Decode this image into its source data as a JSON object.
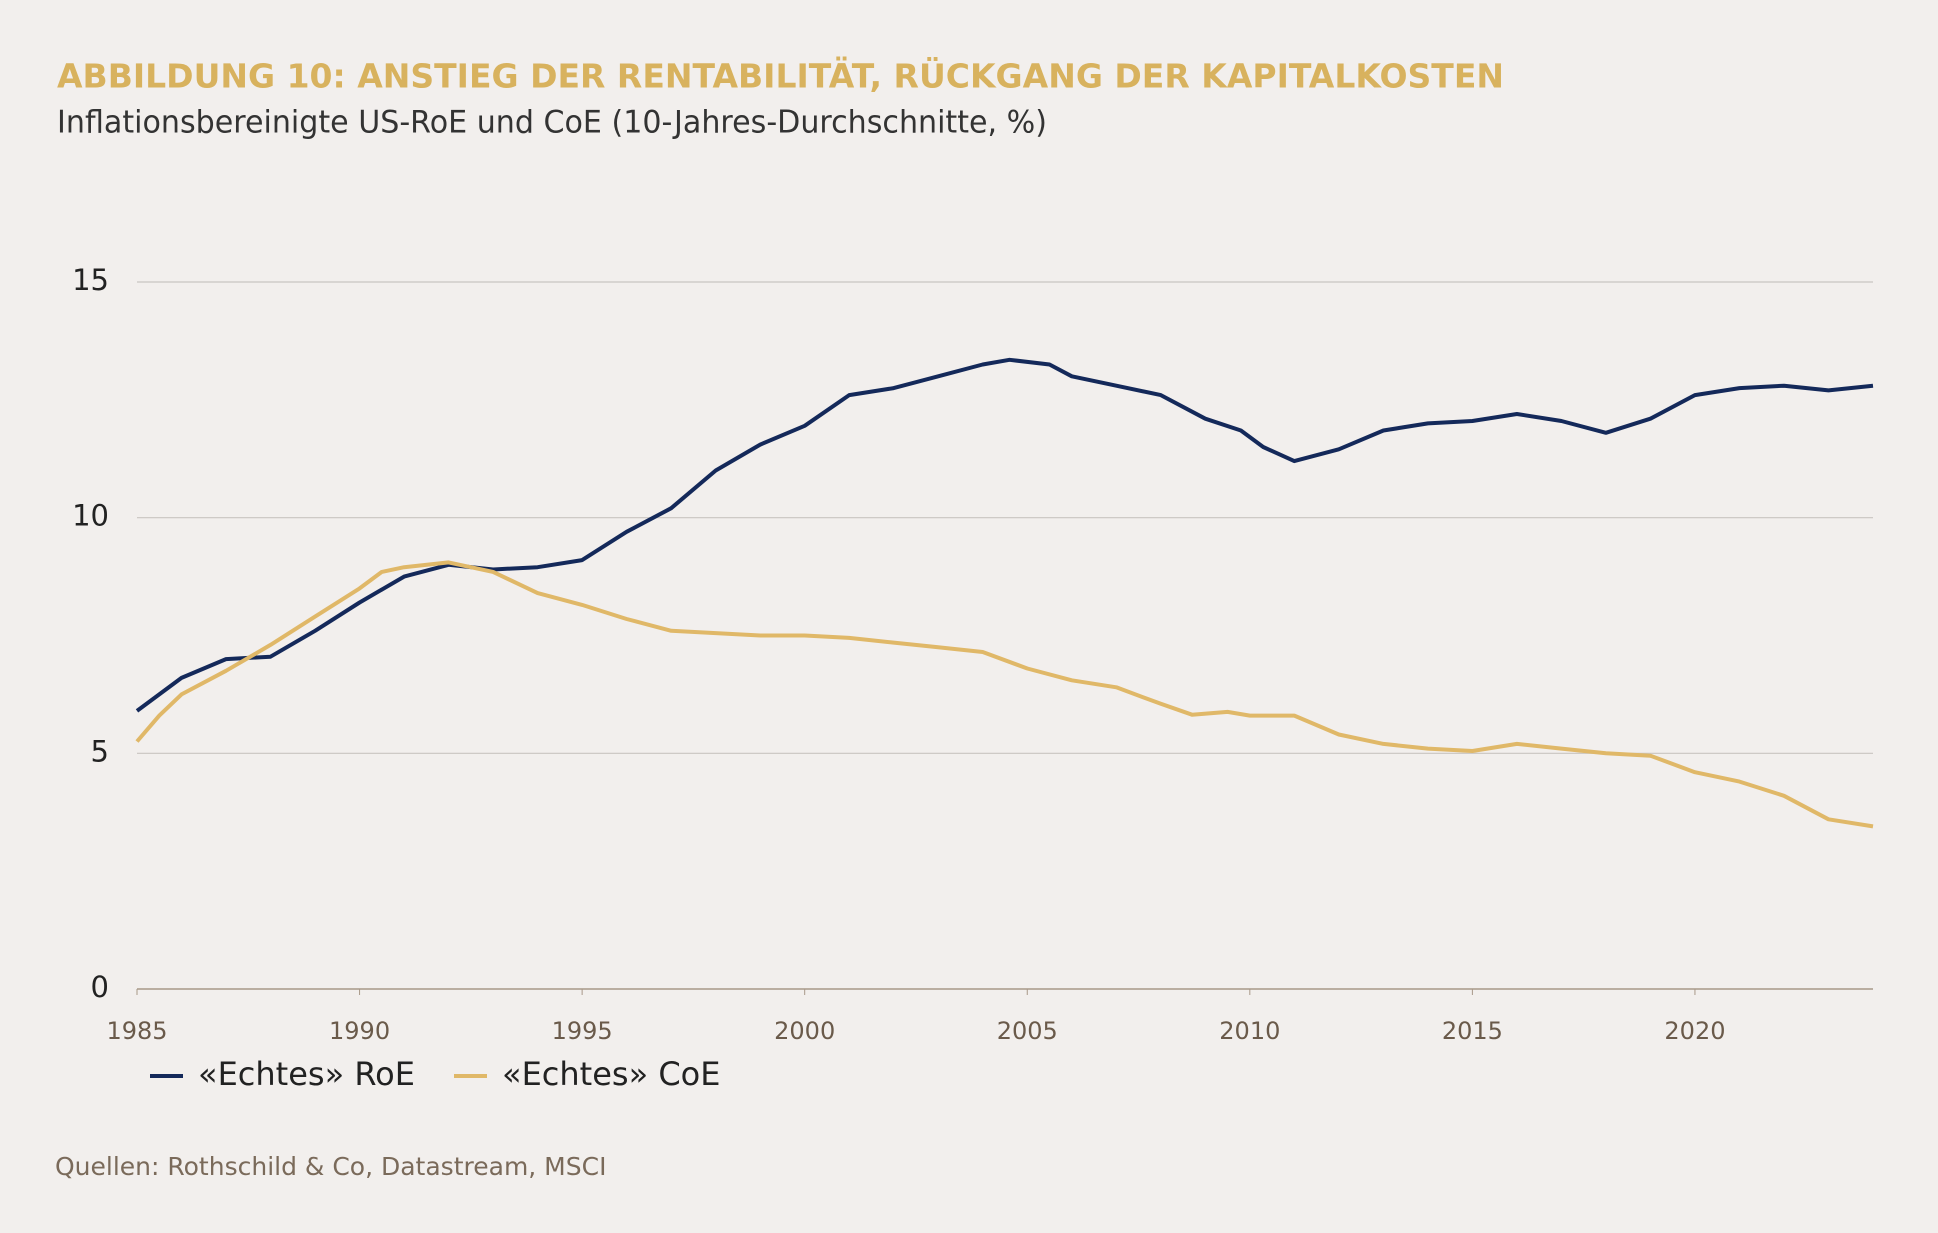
{
  "chart_data": {
    "type": "line",
    "title": "ABBILDUNG 10: ANSTIEG DER RENTABILITÄT, RÜCKGANG DER KAPITALKOSTEN",
    "subtitle": "Inflationsbereinigte US-RoE und CoE (10-Jahres-Durchschnitte, %)",
    "source": "Quellen: Rothschild & Co, Datastream, MSCI",
    "xlim": [
      1985,
      2024
    ],
    "xticks": [
      1985,
      1990,
      1995,
      2000,
      2005,
      2010,
      2015,
      2020
    ],
    "ylim": [
      0,
      15
    ],
    "yticks": [
      0,
      5,
      10,
      15
    ],
    "grid": true,
    "series": [
      {
        "name": "«Echtes» RoE",
        "color": "#14295a",
        "x": [
          1985,
          1986,
          1987,
          1988,
          1989,
          1990,
          1991,
          1992,
          1993,
          1994,
          1995,
          1996,
          1997,
          1998,
          1999,
          2000,
          2001,
          2002,
          2003,
          2004,
          2004.6,
          2005.5,
          2006,
          2007,
          2008,
          2009,
          2009.8,
          2010.3,
          2011,
          2012,
          2013,
          2014,
          2015,
          2016,
          2017,
          2018,
          2019,
          2020,
          2021,
          2022,
          2023,
          2024
        ],
        "values": [
          5.9,
          6.6,
          7.0,
          7.05,
          7.6,
          8.2,
          8.75,
          9.0,
          8.9,
          8.95,
          9.1,
          9.7,
          10.2,
          11.0,
          11.55,
          11.95,
          12.6,
          12.75,
          13.0,
          13.25,
          13.35,
          13.25,
          13.0,
          12.8,
          12.6,
          12.1,
          11.85,
          11.5,
          11.2,
          11.45,
          11.85,
          12.0,
          12.05,
          12.2,
          12.05,
          11.8,
          12.1,
          12.6,
          12.75,
          12.8,
          12.7,
          12.8
        ]
      },
      {
        "name": "«Echtes» CoE",
        "color": "#e0b868",
        "x": [
          1985,
          1985.5,
          1986,
          1987,
          1988,
          1989,
          1990,
          1990.5,
          1991,
          1992,
          1993,
          1994,
          1995,
          1996,
          1997,
          1998,
          1999,
          2000,
          2001,
          2002,
          2003,
          2004,
          2005,
          2006,
          2007,
          2008,
          2008.7,
          2009.5,
          2010,
          2011,
          2012,
          2013,
          2014,
          2015,
          2016,
          2017,
          2018,
          2019,
          2020,
          2021,
          2022,
          2023,
          2024
        ],
        "values": [
          5.25,
          5.8,
          6.25,
          6.75,
          7.3,
          7.9,
          8.5,
          8.85,
          8.95,
          9.05,
          8.85,
          8.4,
          8.15,
          7.85,
          7.6,
          7.55,
          7.5,
          7.5,
          7.45,
          7.35,
          7.25,
          7.15,
          6.8,
          6.55,
          6.4,
          6.05,
          5.82,
          5.88,
          5.8,
          5.8,
          5.4,
          5.2,
          5.1,
          5.05,
          5.2,
          5.1,
          5.0,
          4.95,
          4.6,
          4.4,
          4.1,
          3.6,
          3.45
        ]
      }
    ]
  }
}
